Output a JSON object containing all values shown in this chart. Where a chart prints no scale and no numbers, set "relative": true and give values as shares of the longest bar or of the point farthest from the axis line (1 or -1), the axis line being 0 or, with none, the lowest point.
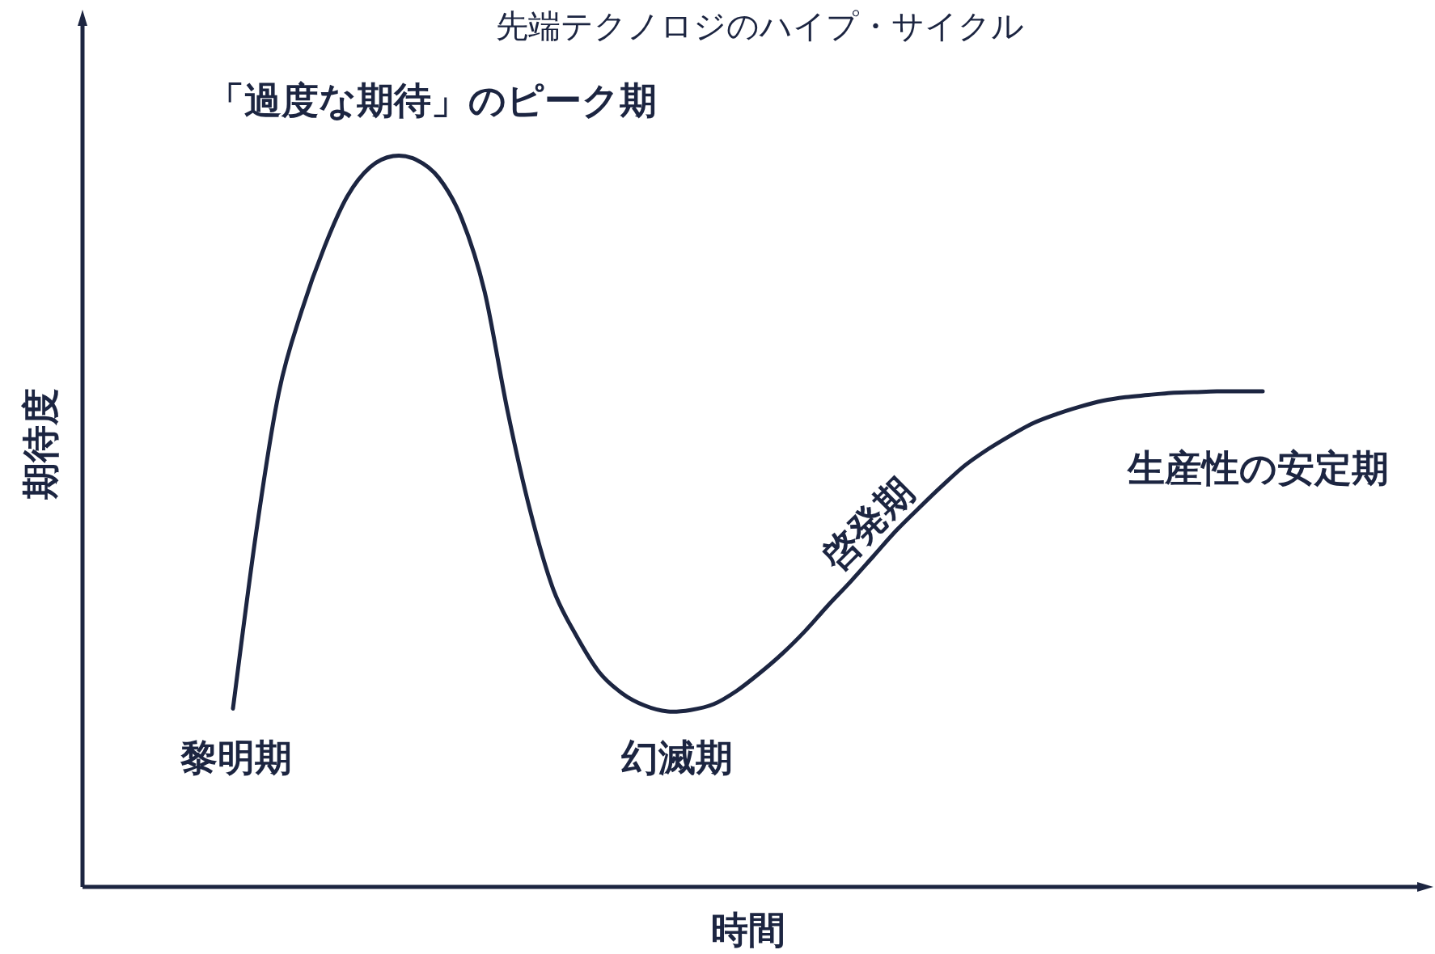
{
  "chart_data": {
    "type": "line",
    "relative": true,
    "title": "先端テクノロジのハイプ・サイクル",
    "xlabel": "時間",
    "ylabel": "期待度",
    "annotations": [
      "「過度な期待」のピーク期",
      "黎明期",
      "幻滅期",
      "啓発期",
      "生産性の安定期"
    ],
    "categories": [
      null,
      null,
      null,
      null,
      null,
      null,
      null,
      null,
      null,
      null,
      null,
      null,
      null,
      null,
      null,
      null,
      null,
      null,
      null,
      null,
      null,
      null,
      null,
      null,
      null,
      null,
      null,
      null,
      null,
      null,
      null,
      null,
      null,
      null,
      null,
      null,
      null,
      null,
      null,
      null,
      null,
      null,
      null,
      null,
      null,
      null
    ],
    "series": [
      {
        "color": "#1c2541",
        "values": [
          0.244,
          0.482,
          0.676,
          0.788,
          0.876,
          0.945,
          0.985,
          1,
          0.995,
          0.97,
          0.914,
          0.814,
          0.651,
          0.513,
          0.407,
          0.344,
          0.294,
          0.265,
          0.248,
          0.24,
          0.242,
          0.25,
          0.268,
          0.292,
          0.319,
          0.35,
          0.385,
          0.418,
          0.453,
          0.488,
          0.519,
          0.549,
          0.577,
          0.599,
          0.618,
          0.635,
          0.647,
          0.657,
          0.665,
          0.67,
          0.673,
          0.676,
          0.677,
          0.678,
          0.678,
          0.678
        ]
      }
    ]
  }
}
